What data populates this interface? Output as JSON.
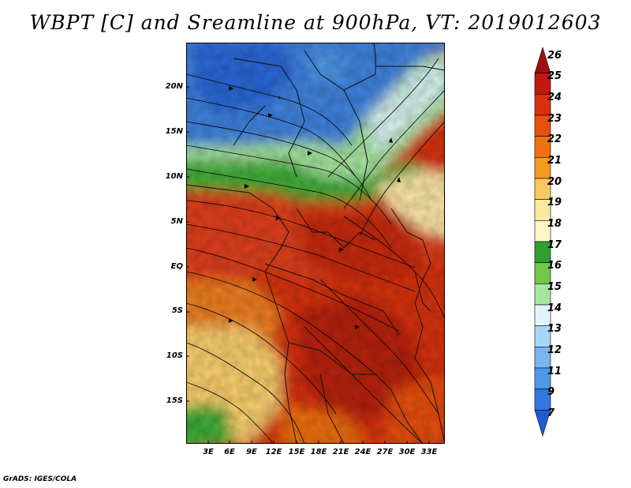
{
  "title": "WBPT [C] and Sreamline at 900hPa, VT: 2019012603",
  "footer": "GrADS: IGES/COLA",
  "map": {
    "lat_labels": [
      "20N",
      "15N",
      "10N",
      "5N",
      "EQ",
      "5S",
      "10S",
      "15S"
    ],
    "lon_labels": [
      "3E",
      "6E",
      "9E",
      "12E",
      "15E",
      "18E",
      "21E",
      "24E",
      "27E",
      "30E",
      "33E"
    ]
  },
  "colorbar": {
    "levels": [
      "26",
      "25",
      "24",
      "23",
      "22",
      "21",
      "20",
      "19",
      "18",
      "17",
      "16",
      "15",
      "14",
      "13",
      "12",
      "11",
      "9",
      "7"
    ],
    "colors": [
      "#a01010",
      "#c01810",
      "#d83010",
      "#e85010",
      "#f07010",
      "#f59a20",
      "#fac860",
      "#fce8a0",
      "#fdf6c8",
      "#2fa030",
      "#70c850",
      "#a8e6a0",
      "#e0f6f8",
      "#a8d6f8",
      "#78b6f0",
      "#4e98e6",
      "#2f78dc",
      "#1f5cd2"
    ]
  }
}
